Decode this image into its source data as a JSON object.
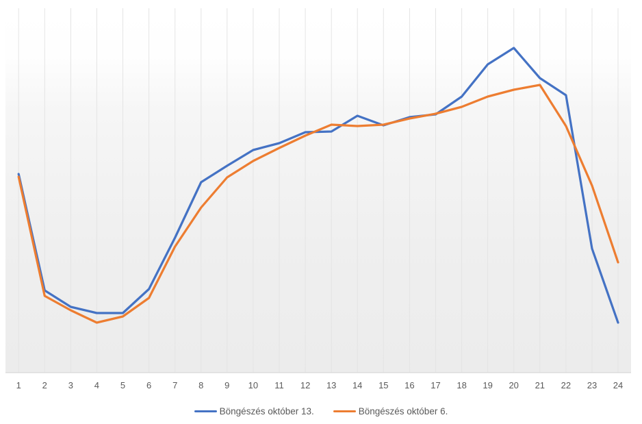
{
  "chart_data": {
    "type": "line",
    "categories": [
      "1",
      "2",
      "3",
      "4",
      "5",
      "6",
      "7",
      "8",
      "9",
      "10",
      "11",
      "12",
      "13",
      "14",
      "15",
      "16",
      "17",
      "18",
      "19",
      "20",
      "21",
      "22",
      "23",
      "24"
    ],
    "series": [
      {
        "name": "Böngészés október 13.",
        "color": "#4472C4",
        "values": [
          58.0,
          24.0,
          19.2,
          17.4,
          17.4,
          24.4,
          39.4,
          55.6,
          60.4,
          65.0,
          67.0,
          70.2,
          70.4,
          75.0,
          72.2,
          74.6,
          75.4,
          80.6,
          90.0,
          94.8,
          86.0,
          81.0,
          36.2,
          14.6
        ]
      },
      {
        "name": "Böngészés október 6.",
        "color": "#ED7D31",
        "values": [
          57.2,
          22.4,
          18.2,
          14.6,
          16.4,
          21.8,
          36.8,
          48.2,
          57.0,
          61.8,
          65.6,
          69.2,
          72.4,
          72.0,
          72.4,
          74.2,
          75.6,
          77.6,
          80.6,
          82.6,
          84.0,
          72.0,
          54.6,
          32.2
        ]
      }
    ],
    "title": "",
    "xlabel": "",
    "ylabel": "",
    "ylim": [
      0,
      100
    ],
    "y_axis_labels_visible": false,
    "grid": "vertical",
    "legend_position": "bottom-center"
  },
  "axis_style": {
    "axis_line_color": "#d2d2d2",
    "gridline_color": "#e4e4e4",
    "tick_label_color": "#595959"
  }
}
